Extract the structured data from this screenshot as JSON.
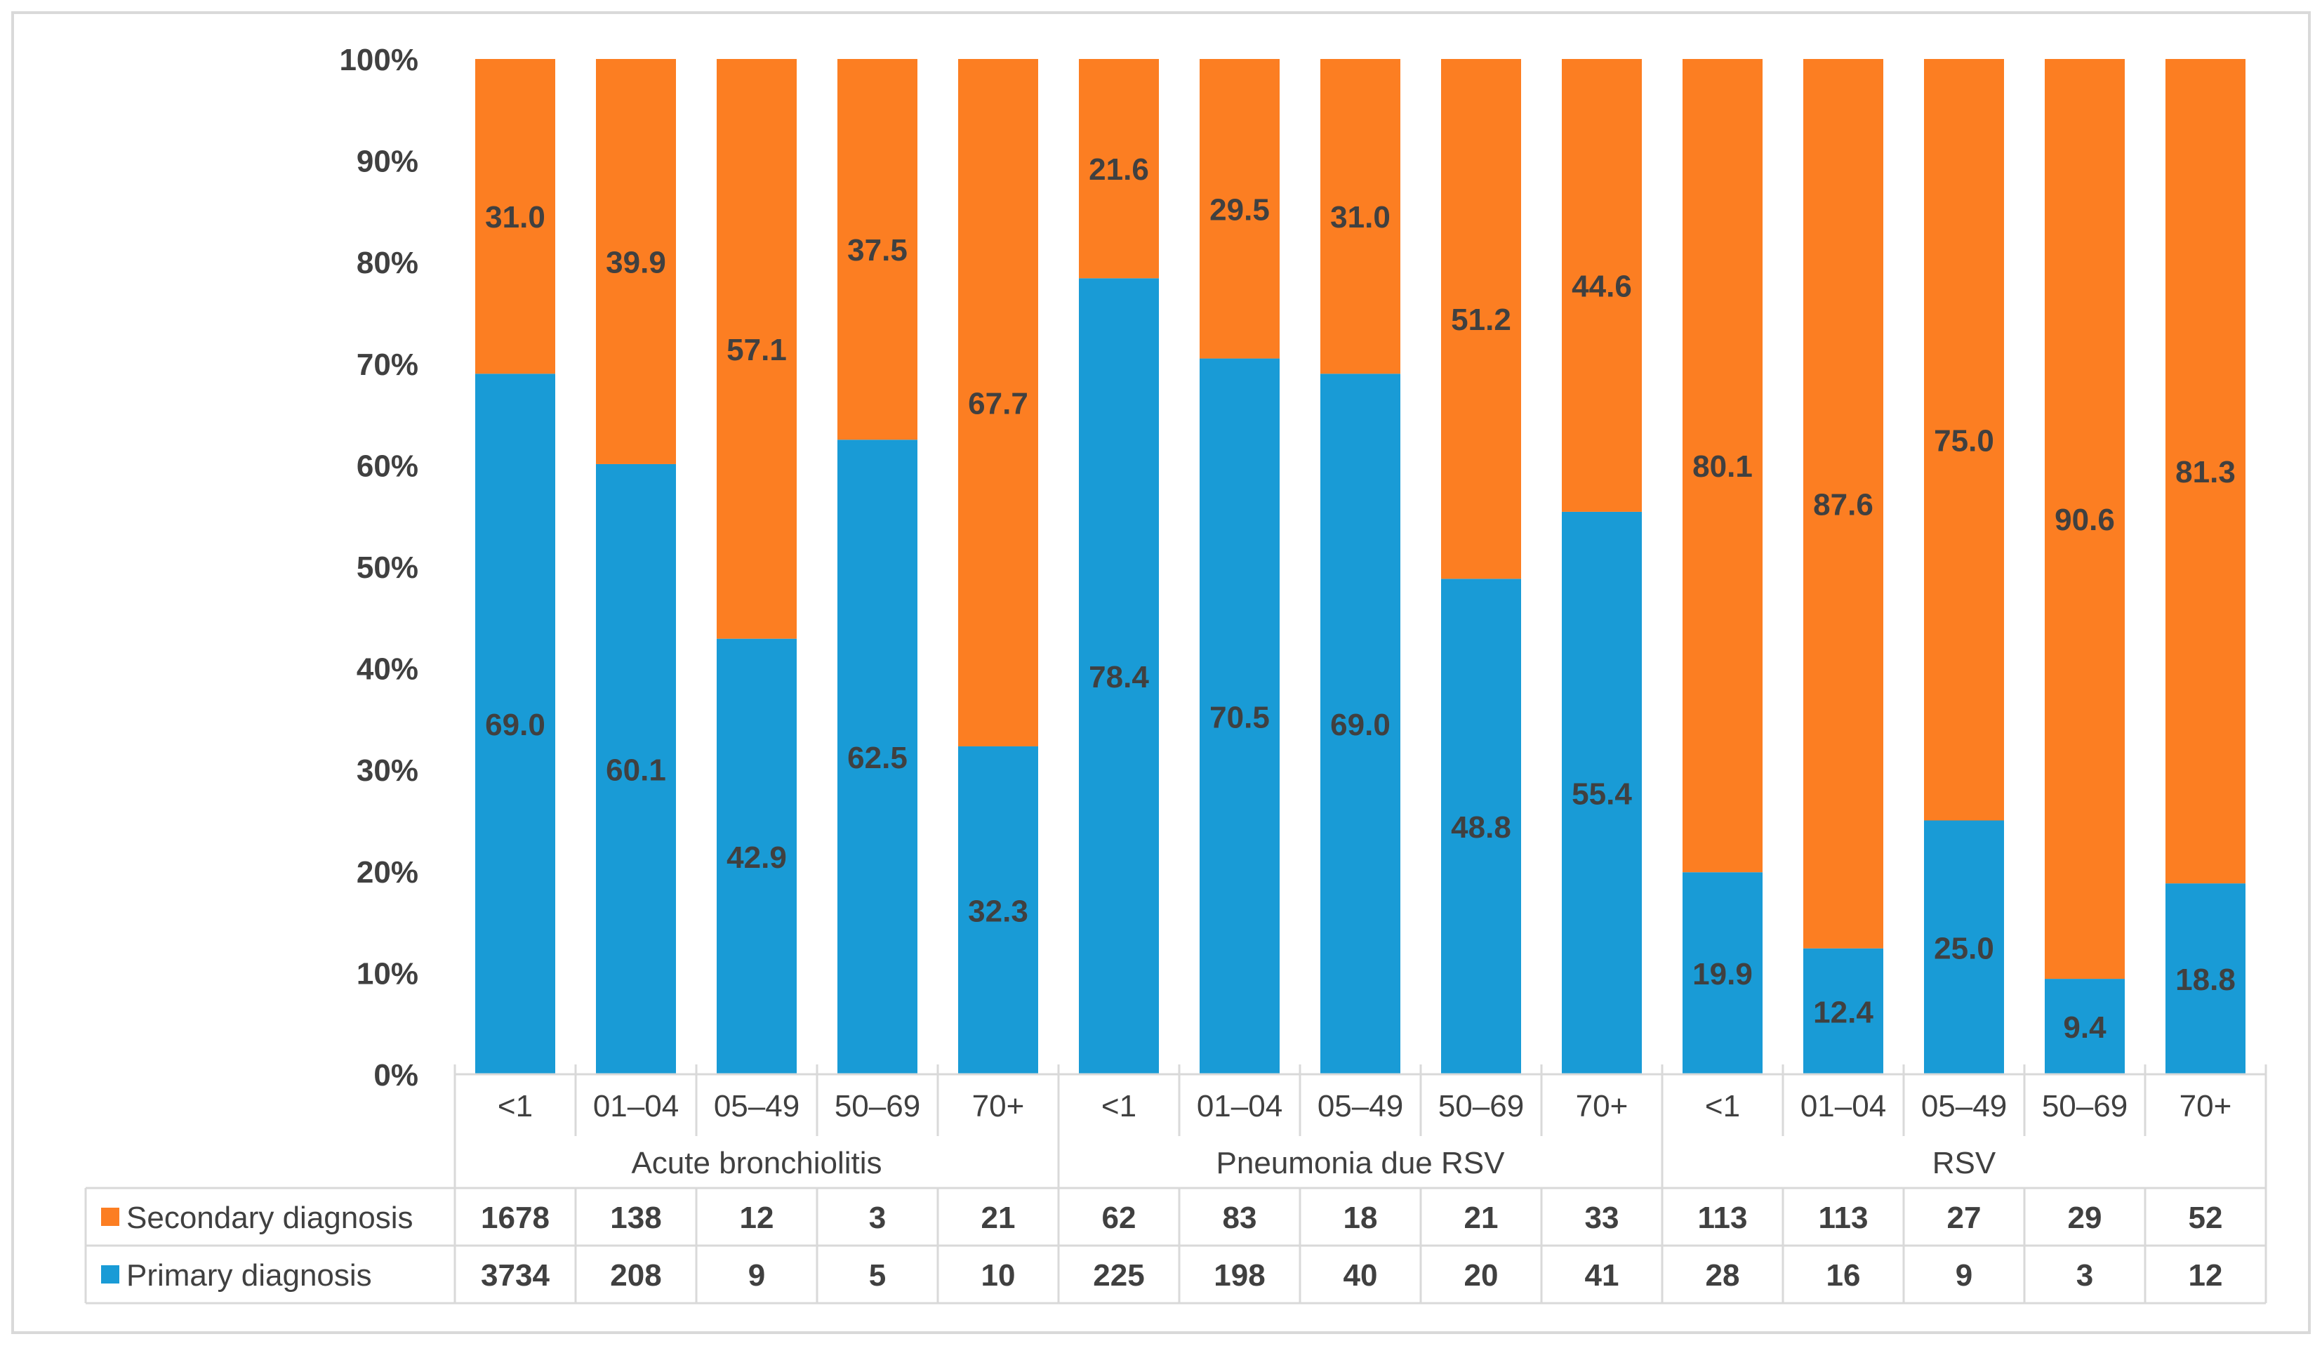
{
  "chart_data": {
    "type": "bar",
    "stacked": true,
    "percent_stacked": true,
    "categories": [
      "<1",
      "01–04",
      "05–49",
      "50–69",
      "70+",
      "<1",
      "01–04",
      "05–49",
      "50–69",
      "70+",
      "<1",
      "01–04",
      "05–49",
      "50–69",
      "70+"
    ],
    "groups": [
      {
        "label": "Acute bronchiolitis",
        "start": 0,
        "count": 5
      },
      {
        "label": "Pneumonia due RSV",
        "start": 5,
        "count": 5
      },
      {
        "label": "RSV",
        "start": 10,
        "count": 5
      }
    ],
    "series": [
      {
        "name": "Primary diagnosis",
        "color": "#199bd6",
        "percent_labels": [
          "69.0",
          "60.1",
          "42.9",
          "62.5",
          "32.3",
          "78.4",
          "70.5",
          "69.0",
          "48.8",
          "55.4",
          "19.9",
          "12.4",
          "25.0",
          "9.4",
          "18.8"
        ],
        "table_values": [
          "3734",
          "208",
          "9",
          "5",
          "10",
          "225",
          "198",
          "40",
          "20",
          "41",
          "28",
          "16",
          "9",
          "3",
          "12"
        ]
      },
      {
        "name": "Secondary diagnosis",
        "color": "#fc7e22",
        "percent_labels": [
          "31.0",
          "39.9",
          "57.1",
          "37.5",
          "67.7",
          "21.6",
          "29.5",
          "31.0",
          "51.2",
          "44.6",
          "80.1",
          "87.6",
          "75.0",
          "90.6",
          "81.3"
        ],
        "table_values": [
          "1678",
          "138",
          "12",
          "3",
          "21",
          "62",
          "83",
          "18",
          "21",
          "33",
          "113",
          "113",
          "27",
          "29",
          "52"
        ]
      }
    ],
    "table_row_order": [
      "Secondary diagnosis",
      "Primary diagnosis"
    ],
    "y_ticks": [
      "0%",
      "10%",
      "20%",
      "30%",
      "40%",
      "50%",
      "60%",
      "70%",
      "80%",
      "90%",
      "100%"
    ],
    "ylim": [
      0,
      100
    ],
    "grid": false,
    "legend": "data-table"
  }
}
